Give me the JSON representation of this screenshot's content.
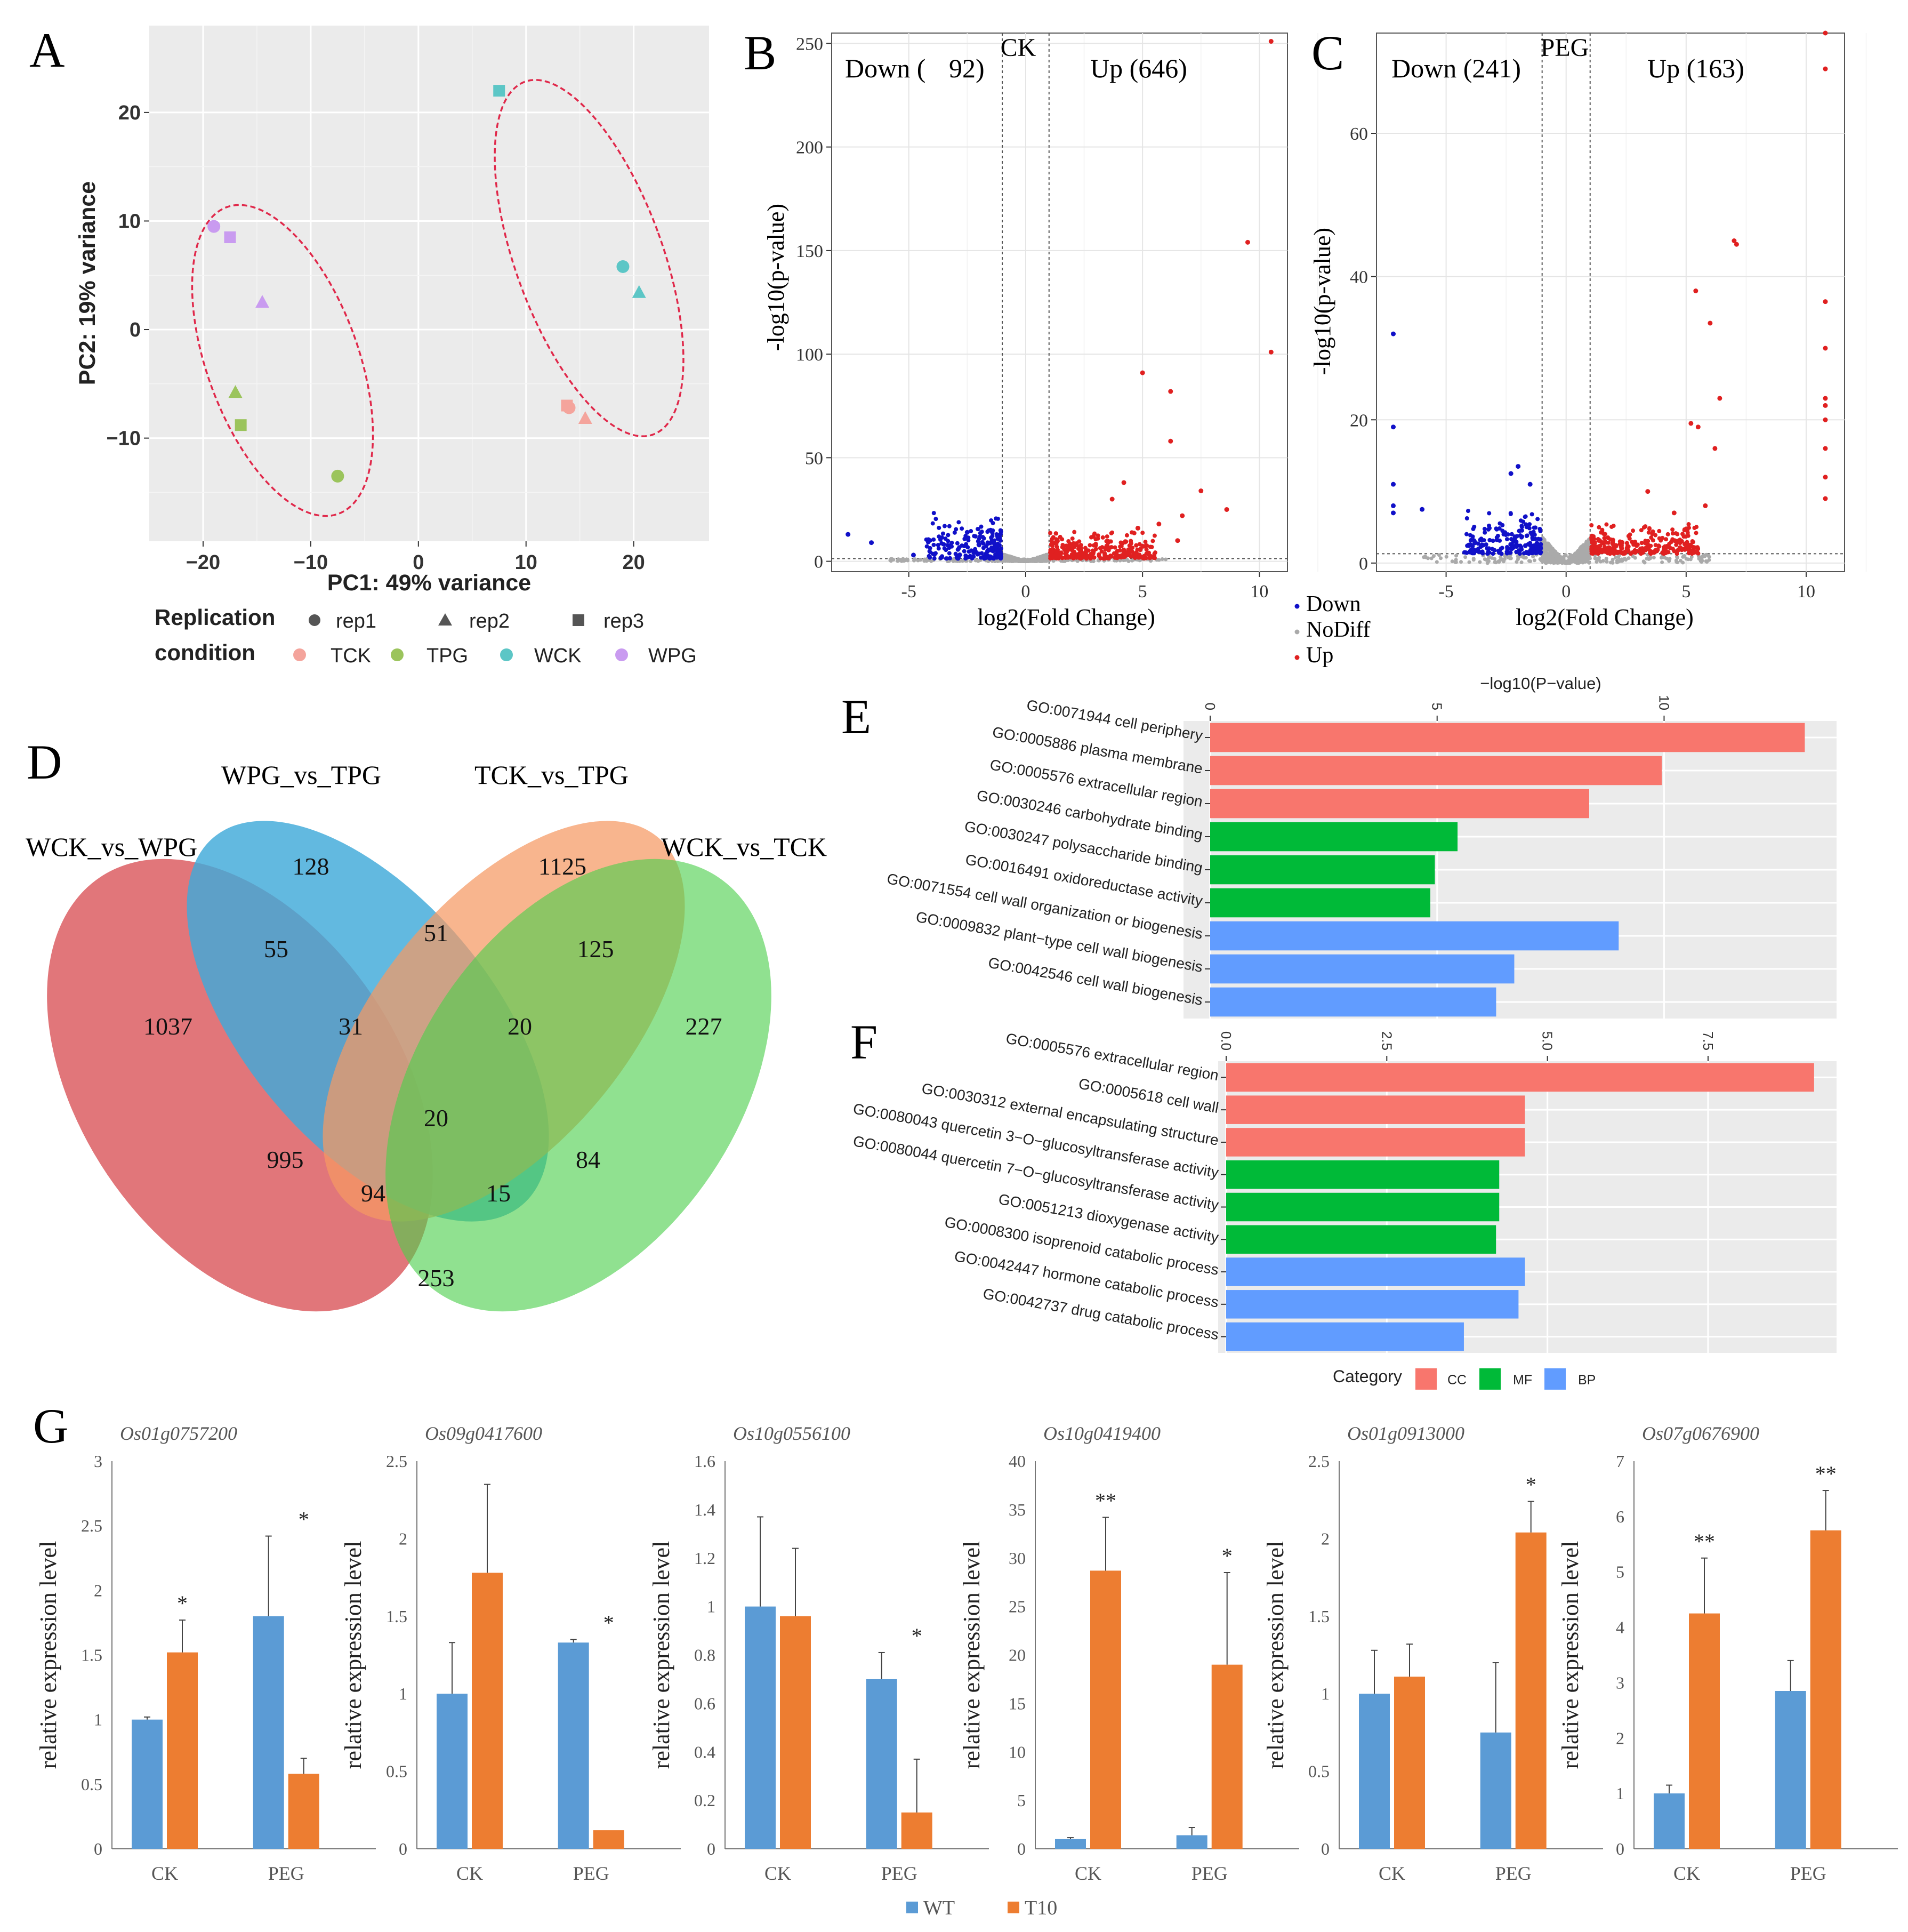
{
  "chart_data": [
    {
      "panel": "A",
      "type": "scatter",
      "xlabel": "PC1: 49% variance",
      "ylabel": "PC2: 19% variance",
      "xlim": [
        -25,
        27
      ],
      "ylim": [
        -19.5,
        28
      ],
      "xticks": [
        "−20",
        "−10",
        "0",
        "10",
        "20"
      ],
      "xtick_values": [
        -20,
        -10,
        0,
        10,
        20
      ],
      "yticks": [
        "−10",
        "0",
        "10",
        "20"
      ],
      "ytick_values": [
        -10,
        0,
        10,
        20
      ],
      "legend_replication_title": "Replication",
      "legend_replication": [
        "rep1",
        "rep2",
        "rep3"
      ],
      "legend_condition_title": "condition",
      "legend_condition": [
        "TCK",
        "TPG",
        "WCK",
        "WPG"
      ],
      "colors": {
        "TCK": "#f4a49c",
        "TPG": "#9bc45c",
        "WCK": "#5cc6c6",
        "WPG": "#c99bf0"
      },
      "points": [
        {
          "x": -19.0,
          "y": 9.5,
          "cond": "WPG",
          "rep": "rep1"
        },
        {
          "x": -14.5,
          "y": 2.5,
          "cond": "WPG",
          "rep": "rep2"
        },
        {
          "x": -17.5,
          "y": 8.5,
          "cond": "WPG",
          "rep": "rep3"
        },
        {
          "x": -7.5,
          "y": -13.5,
          "cond": "TPG",
          "rep": "rep1"
        },
        {
          "x": -17.0,
          "y": -5.8,
          "cond": "TPG",
          "rep": "rep2"
        },
        {
          "x": -16.5,
          "y": -8.8,
          "cond": "TPG",
          "rep": "rep3"
        },
        {
          "x": 19.0,
          "y": 5.8,
          "cond": "WCK",
          "rep": "rep1"
        },
        {
          "x": 20.5,
          "y": 3.4,
          "cond": "WCK",
          "rep": "rep2"
        },
        {
          "x": 7.5,
          "y": 22.0,
          "cond": "WCK",
          "rep": "rep3"
        },
        {
          "x": 14.0,
          "y": -7.2,
          "cond": "TCK",
          "rep": "rep1"
        },
        {
          "x": 15.5,
          "y": -8.2,
          "cond": "TCK",
          "rep": "rep2"
        },
        {
          "x": 13.8,
          "y": -7.0,
          "cond": "TCK",
          "rep": "rep3"
        }
      ]
    },
    {
      "panel": "B",
      "type": "scatter",
      "title": "CK",
      "xlabel": "log2(Fold Change)",
      "ylabel": "-log10(p-value)",
      "xlim": [
        -8.3,
        11.2
      ],
      "ylim": [
        -5,
        255
      ],
      "xticks": [
        "-5",
        "0",
        "5",
        "10"
      ],
      "xtick_values": [
        -5,
        0,
        5,
        10
      ],
      "yticks": [
        "0",
        "50",
        "100",
        "150",
        "200",
        "250"
      ],
      "ytick_values": [
        0,
        50,
        100,
        150,
        200,
        250
      ],
      "down_label": "Down (",
      "down_count": "92)",
      "up_label": "Up (646)",
      "highlight_up": [
        [
          10.5,
          251
        ],
        [
          9.5,
          154
        ],
        [
          10.5,
          101
        ],
        [
          5,
          91
        ],
        [
          6.2,
          82
        ],
        [
          6.2,
          58
        ],
        [
          4.2,
          38
        ],
        [
          7.5,
          34
        ],
        [
          8.6,
          25
        ],
        [
          3.7,
          30
        ],
        [
          5.7,
          18
        ],
        [
          6.7,
          22
        ],
        [
          2.9,
          12
        ],
        [
          6.5,
          10
        ],
        [
          4.8,
          16
        ]
      ],
      "highlight_down": [
        [
          -7.6,
          13
        ],
        [
          -6.6,
          9
        ],
        [
          -4.8,
          3
        ],
        [
          -2.5,
          14
        ],
        [
          -1.5,
          15
        ],
        [
          -1.2,
          12
        ],
        [
          -2.0,
          8
        ]
      ]
    },
    {
      "panel": "C",
      "type": "scatter",
      "title": "PEG",
      "xlabel": "log2(Fold Change)",
      "ylabel": "-log10(p-value)",
      "xlim": [
        -7.9,
        11.6
      ],
      "ylim": [
        -1.2,
        74
      ],
      "xticks": [
        "-5",
        "0",
        "5",
        "10"
      ],
      "xtick_values": [
        -5,
        0,
        5,
        10
      ],
      "yticks": [
        "0",
        "20",
        "40",
        "60"
      ],
      "ytick_values": [
        0,
        20,
        40,
        60
      ],
      "down_label": "Down (241)",
      "up_label": "Up (163)",
      "highlight_up": [
        [
          10.8,
          74
        ],
        [
          10.8,
          69
        ],
        [
          7.0,
          45
        ],
        [
          7.1,
          44.5
        ],
        [
          5.4,
          38
        ],
        [
          6.0,
          33.5
        ],
        [
          10.8,
          36.5
        ],
        [
          10.8,
          30
        ],
        [
          6.4,
          23
        ],
        [
          10.8,
          23
        ],
        [
          10.8,
          22
        ],
        [
          10.8,
          20
        ],
        [
          5.2,
          19.5
        ],
        [
          5.5,
          19
        ],
        [
          6.2,
          16
        ],
        [
          10.8,
          16
        ],
        [
          10.8,
          12
        ],
        [
          10.8,
          9
        ],
        [
          3.4,
          10
        ],
        [
          5.8,
          8
        ],
        [
          4.5,
          7
        ]
      ],
      "highlight_down": [
        [
          -7.2,
          32
        ],
        [
          -7.2,
          19
        ],
        [
          -7.2,
          11
        ],
        [
          -7.2,
          8
        ],
        [
          -7.2,
          7
        ],
        [
          -6.0,
          7.5
        ],
        [
          -2.0,
          13.5
        ],
        [
          -2.3,
          12.5
        ],
        [
          -1.5,
          11
        ]
      ],
      "legend": [
        "Down",
        "NoDiff",
        "Up"
      ]
    },
    {
      "panel": "D",
      "type": "venn",
      "sets": [
        "WCK_vs_WPG",
        "WPG_vs_TPG",
        "TCK_vs_TPG",
        "WCK_vs_TCK"
      ],
      "regions": [
        {
          "sets": "WCK_vs_WPG only",
          "value": 1037
        },
        {
          "sets": "WPG_vs_TPG only",
          "value": 128
        },
        {
          "sets": "TCK_vs_TPG only",
          "value": 1125
        },
        {
          "sets": "WCK_vs_TCK only",
          "value": 227
        },
        {
          "sets": "WCK_vs_WPG & WPG_vs_TPG",
          "value": 55
        },
        {
          "sets": "WPG_vs_TPG & TCK_vs_TPG",
          "value": 51
        },
        {
          "sets": "TCK_vs_TPG & WCK_vs_TCK",
          "value": 125
        },
        {
          "sets": "WCK_vs_WPG & WPG_vs_TPG & TCK_vs_TPG",
          "value": 31
        },
        {
          "sets": "WPG_vs_TPG & TCK_vs_TPG & WCK_vs_TCK",
          "value": 20
        },
        {
          "sets": "all four",
          "value": 20
        },
        {
          "sets": "WCK_vs_WPG & TCK_vs_TPG",
          "value": 995
        },
        {
          "sets": "WPG_vs_TPG & WCK_vs_TCK",
          "value": 84
        },
        {
          "sets": "WCK_vs_WPG & TCK_vs_TPG & WCK_vs_TCK",
          "value": 94
        },
        {
          "sets": "WCK_vs_WPG & WPG_vs_TPG & WCK_vs_TCK",
          "value": 15
        },
        {
          "sets": "WCK_vs_WPG & WCK_vs_TCK",
          "value": 253
        }
      ]
    },
    {
      "panel": "E",
      "type": "bar",
      "orientation": "horizontal",
      "xlabel": "−log10(P−value)",
      "xlim": [
        0,
        13.8
      ],
      "xticks": [
        "0",
        "5",
        "10"
      ],
      "xtick_values": [
        0,
        5,
        10
      ],
      "categories": [
        "GO:0071944 cell periphery",
        "GO:0005886 plasma membrane",
        "GO:0005576 extracellular region",
        "GO:0030246 carbohydrate binding",
        "GO:0030247 polysaccharide binding",
        "GO:0016491 oxidoreductase activity",
        "GO:0071554 cell wall organization or biogenesis",
        "GO:0009832 plant−type cell wall biogenesis",
        "GO:0042546 cell wall biogenesis"
      ],
      "values": [
        13.1,
        9.95,
        8.35,
        5.45,
        4.95,
        4.85,
        9.0,
        6.7,
        6.3
      ],
      "category": [
        "CC",
        "CC",
        "CC",
        "MF",
        "MF",
        "MF",
        "BP",
        "BP",
        "BP"
      ]
    },
    {
      "panel": "F",
      "type": "bar",
      "orientation": "horizontal",
      "xlim": [
        0,
        9.5
      ],
      "xticks": [
        "0.0",
        "2.5",
        "5.0",
        "7.5"
      ],
      "xtick_values": [
        0,
        2.5,
        5.0,
        7.5
      ],
      "categories": [
        "GO:0005576 extracellular region",
        "GO:0005618 cell wall",
        "GO:0030312 external encapsulating structure",
        "GO:0080043 quercetin 3−O−glucosyltransferase activity",
        "GO:0080044 quercetin 7−O−glucosyltransferase activity",
        "GO:0051213 dioxygenase activity",
        "GO:0008300 isoprenoid catabolic process",
        "GO:0042447 hormone catabolic process",
        "GO:0042737 drug catabolic process"
      ],
      "values": [
        9.15,
        4.65,
        4.65,
        4.25,
        4.25,
        4.2,
        4.65,
        4.55,
        3.7
      ],
      "category": [
        "CC",
        "CC",
        "CC",
        "MF",
        "MF",
        "MF",
        "BP",
        "BP",
        "BP"
      ],
      "legend_title": "Category",
      "legend": [
        "CC",
        "MF",
        "BP"
      ],
      "colors": {
        "CC": "#f8766d",
        "MF": "#00ba38",
        "BP": "#619cff"
      }
    },
    {
      "panel": "G",
      "type": "bar",
      "ylabel": "relative expression level",
      "categories": [
        "CK",
        "PEG"
      ],
      "series_names": [
        "WT",
        "T10"
      ],
      "colors": {
        "WT": "#5b9bd5",
        "T10": "#ed7d31"
      },
      "subplots": [
        {
          "gene": "Os01g0757200",
          "ymax": 3,
          "yticks": [
            "0",
            "0.5",
            "1",
            "1.5",
            "2",
            "2.5",
            "3"
          ],
          "ytick_values": [
            0,
            0.5,
            1,
            1.5,
            2,
            2.5,
            3
          ],
          "WT": [
            1.0,
            1.8
          ],
          "T10": [
            1.52,
            0.58
          ],
          "WT_err": [
            0.02,
            0.62
          ],
          "T10_err": [
            0.25,
            0.12
          ],
          "marks": [
            "*",
            "*"
          ]
        },
        {
          "gene": "Os09g0417600",
          "ymax": 2.5,
          "yticks": [
            "0",
            "0.5",
            "1",
            "1.5",
            "2",
            "2.5"
          ],
          "ytick_values": [
            0,
            0.5,
            1,
            1.5,
            2,
            2.5
          ],
          "WT": [
            1.0,
            1.33
          ],
          "T10": [
            1.78,
            0.12
          ],
          "WT_err": [
            0.33,
            0.02
          ],
          "T10_err": [
            0.57,
            0.0
          ],
          "marks": [
            "",
            "*"
          ]
        },
        {
          "gene": "Os10g0556100",
          "ymax": 1.6,
          "yticks": [
            "0",
            "0.2",
            "0.4",
            "0.6",
            "0.8",
            "1",
            "1.2",
            "1.4",
            "1.6"
          ],
          "ytick_values": [
            0,
            0.2,
            0.4,
            0.6,
            0.8,
            1.0,
            1.2,
            1.4,
            1.6
          ],
          "WT": [
            1.0,
            0.7
          ],
          "T10": [
            0.96,
            0.15
          ],
          "WT_err": [
            0.37,
            0.11
          ],
          "T10_err": [
            0.28,
            0.22
          ],
          "marks": [
            "",
            "*"
          ]
        },
        {
          "gene": "Os10g0419400",
          "ymax": 40,
          "yticks": [
            "0",
            "5",
            "10",
            "15",
            "20",
            "25",
            "30",
            "35",
            "40"
          ],
          "ytick_values": [
            0,
            5,
            10,
            15,
            20,
            25,
            30,
            35,
            40
          ],
          "WT": [
            1.0,
            1.4
          ],
          "T10": [
            28.7,
            19.0
          ],
          "WT_err": [
            0.15,
            0.8
          ],
          "T10_err": [
            5.5,
            9.5
          ],
          "marks": [
            "**",
            "*"
          ]
        },
        {
          "gene": "Os01g0913000",
          "ymax": 2.5,
          "yticks": [
            "0",
            "0.5",
            "1",
            "1.5",
            "2",
            "2.5"
          ],
          "ytick_values": [
            0,
            0.5,
            1,
            1.5,
            2,
            2.5
          ],
          "WT": [
            1.0,
            0.75
          ],
          "T10": [
            1.11,
            2.04
          ],
          "WT_err": [
            0.28,
            0.45
          ],
          "T10_err": [
            0.21,
            0.2
          ],
          "marks": [
            "",
            "*"
          ]
        },
        {
          "gene": "Os07g0676900",
          "ymax": 7,
          "yticks": [
            "0",
            "1",
            "2",
            "3",
            "4",
            "5",
            "6",
            "7"
          ],
          "ytick_values": [
            0,
            1,
            2,
            3,
            4,
            5,
            6,
            7
          ],
          "WT": [
            1.0,
            2.85
          ],
          "T10": [
            4.25,
            5.75
          ],
          "WT_err": [
            0.15,
            0.55
          ],
          "T10_err": [
            1.0,
            0.72
          ],
          "marks": [
            "**",
            "**"
          ]
        }
      ]
    }
  ],
  "labels": {
    "panel_A": "A",
    "panel_B": "B",
    "panel_C": "C",
    "panel_D": "D",
    "panel_E": "E",
    "panel_F": "F",
    "panel_G": "G",
    "e_axis_title": "−log10(P−value)",
    "f_legend_title": "Category",
    "g_legend_wt": "WT",
    "g_legend_t10": "T10",
    "volcano_legend": [
      "Down",
      "NoDiff",
      "Up"
    ]
  }
}
